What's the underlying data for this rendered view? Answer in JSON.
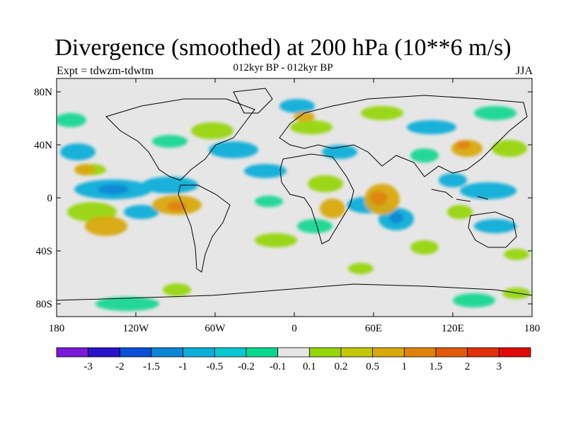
{
  "header": {
    "title": "Divergence (smoothed) at 200 hPa (10**6 m/s)",
    "expt_label": "Expt = tdwzm-tdwtm",
    "period_label": "012kyr BP - 012kyr BP",
    "season_label": "JJA"
  },
  "map": {
    "background_color": "#e6e6e6",
    "lat_tick_labels": [
      "80N",
      "40N",
      "0",
      "40S",
      "80S"
    ],
    "lon_tick_labels": [
      "180",
      "120W",
      "60W",
      "0",
      "60E",
      "120E",
      "180"
    ]
  },
  "colorbar": {
    "colors": [
      "#7a19d6",
      "#2a12c8",
      "#0a4fd8",
      "#0a86d6",
      "#0aaed9",
      "#0ac6d1",
      "#0ad88f",
      "#e6e6e6",
      "#97d60a",
      "#c5c70a",
      "#d8a90a",
      "#e0820a",
      "#e05a0a",
      "#e0300a",
      "#e00a0a"
    ],
    "labels": [
      "-3",
      "-2",
      "-1.5",
      "-1",
      "-0.5",
      "-0.2",
      "-0.1",
      "0.1",
      "0.2",
      "0.5",
      "1",
      "1.5",
      "2",
      "3"
    ]
  }
}
